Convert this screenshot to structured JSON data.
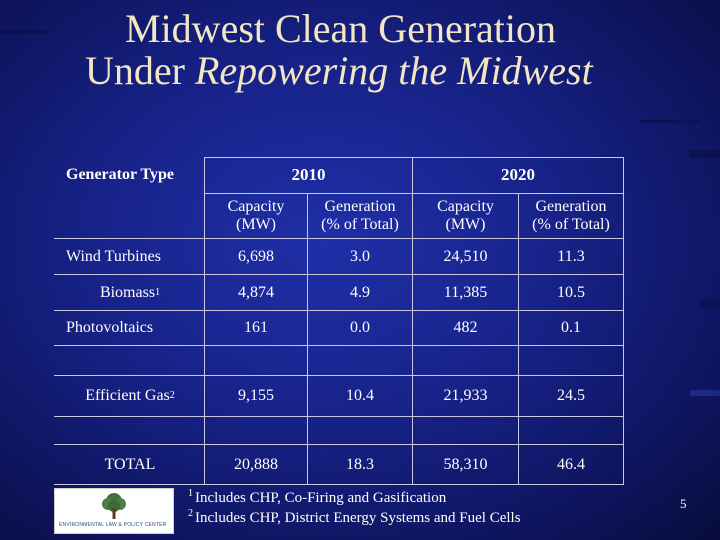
{
  "title": {
    "line1": "Midwest Clean Generation",
    "line2_plain": "Under ",
    "line2_italic": "Repowering the Midwest"
  },
  "table": {
    "generator_type_label": "Generator Type",
    "year_2010": "2010",
    "year_2020": "2020",
    "capacity_line1": "Capacity",
    "capacity_line2": "(MW)",
    "generation_line1": "Generation",
    "generation_line2": "(% of Total)",
    "rows": [
      {
        "name": "Wind Turbines",
        "sup": "",
        "cap2010": "6,698",
        "gen2010": "3.0",
        "cap2020": "24,510",
        "gen2020": "11.3"
      },
      {
        "name": "Biomass",
        "sup": "1",
        "cap2010": "4,874",
        "gen2010": "4.9",
        "cap2020": "11,385",
        "gen2020": "10.5"
      },
      {
        "name": "Photovoltaics",
        "sup": "",
        "cap2010": "161",
        "gen2010": "0.0",
        "cap2020": "482",
        "gen2020": "0.1"
      },
      {
        "name": "Efficient Gas",
        "sup": "2",
        "cap2010": "9,155",
        "gen2010": "10.4",
        "cap2020": "21,933",
        "gen2020": "24.5"
      },
      {
        "name": "TOTAL",
        "sup": "",
        "cap2010": "20,888",
        "gen2010": "18.3",
        "cap2020": "58,310",
        "gen2020": "46.4"
      }
    ]
  },
  "footnotes": [
    {
      "mark": "1",
      "text": "Includes CHP, Co-Firing and Gasification"
    },
    {
      "mark": "2",
      "text": "Includes CHP, District Energy Systems and Fuel Cells"
    }
  ],
  "logo_text": "ENVIRONMENTAL LAW & POLICY CENTER",
  "page_number": "5",
  "colors": {
    "title": "#f2e6c4",
    "text": "#ffffff",
    "background": "#18238a"
  }
}
